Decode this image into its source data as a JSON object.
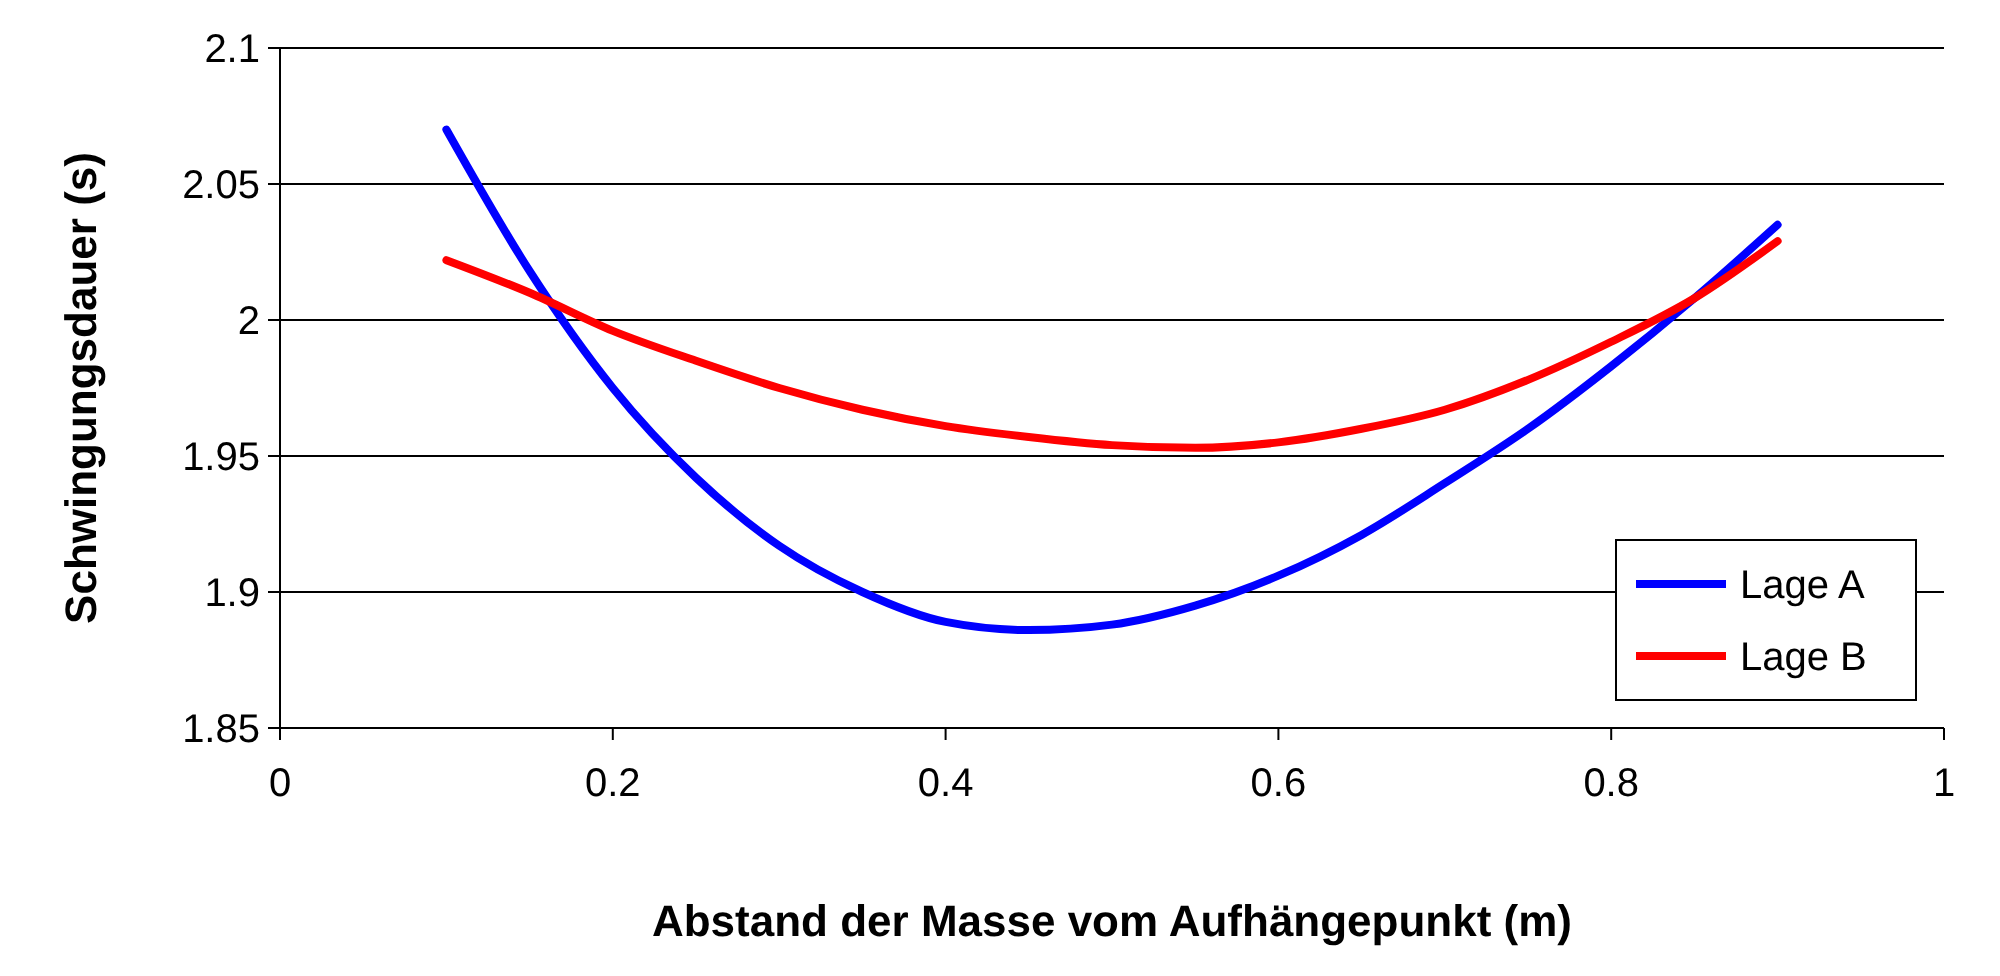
{
  "chart_data": {
    "type": "line",
    "xlabel": "Abstand der Masse vom Aufhängepunkt (m)",
    "ylabel": "Schwingungsdauer (s)",
    "x": [
      0.1,
      0.15,
      0.2,
      0.25,
      0.3,
      0.35,
      0.4,
      0.45,
      0.5,
      0.55,
      0.6,
      0.65,
      0.7,
      0.75,
      0.8,
      0.85,
      0.9
    ],
    "series": [
      {
        "name": "Lage A",
        "color": "#0000ff",
        "values": [
          2.07,
          2.018,
          1.975,
          1.942,
          1.917,
          1.9,
          1.889,
          1.886,
          1.888,
          1.895,
          1.906,
          1.921,
          1.94,
          1.96,
          1.983,
          2.008,
          2.035
        ]
      },
      {
        "name": "Lage B",
        "color": "#ff0000",
        "values": [
          2.022,
          2.01,
          1.996,
          1.985,
          1.975,
          1.967,
          1.961,
          1.957,
          1.954,
          1.953,
          1.955,
          1.96,
          1.967,
          1.978,
          1.992,
          2.008,
          2.029
        ]
      }
    ],
    "xlim": [
      0,
      1
    ],
    "xticks": [
      0,
      0.2,
      0.4,
      0.6,
      0.8,
      1
    ],
    "ylim": [
      1.85,
      2.1
    ],
    "yticks": [
      1.85,
      1.9,
      1.95,
      2,
      2.05,
      2.1
    ],
    "grid": "y",
    "legend": "bottom right",
    "marker": "none",
    "line_style": "solid"
  }
}
